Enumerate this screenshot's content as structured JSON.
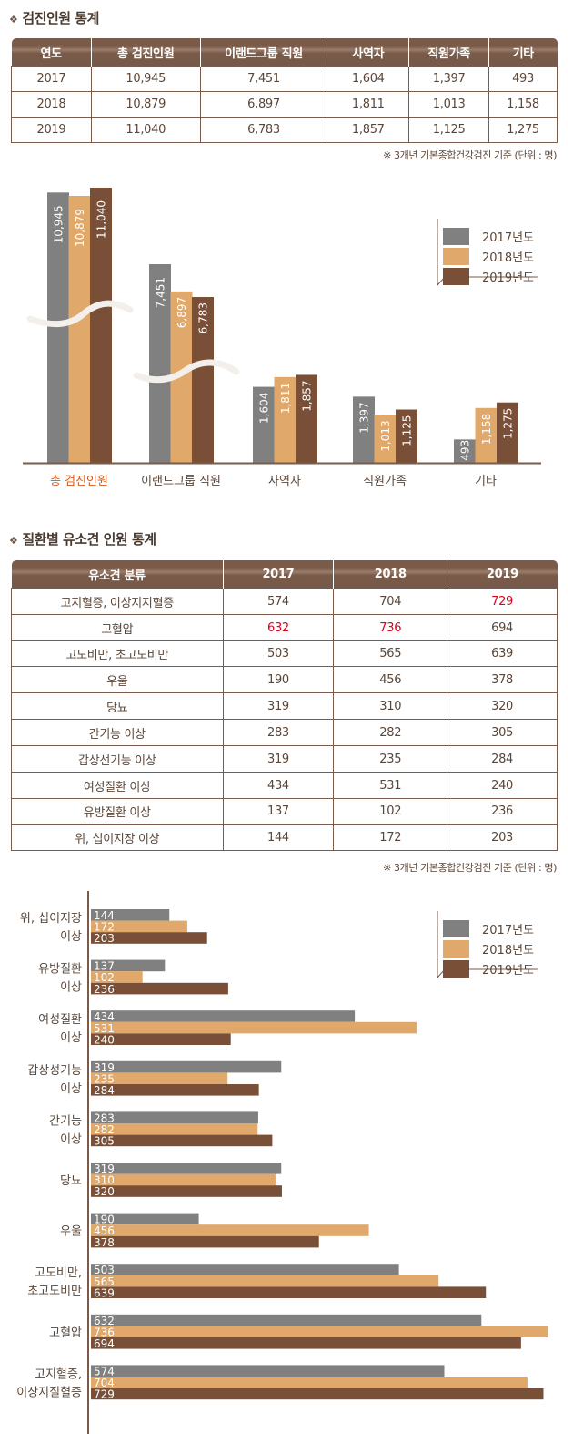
{
  "section1": {
    "title": "검진인원 통계",
    "headers": [
      "연도",
      "총 검진인원",
      "이랜드그룹 직원",
      "사역자",
      "직원가족",
      "기타"
    ],
    "rows": [
      [
        "2017",
        "10,945",
        "7,451",
        "1,604",
        "1,397",
        "493"
      ],
      [
        "2018",
        "10,879",
        "6,897",
        "1,811",
        "1,013",
        "1,158"
      ],
      [
        "2019",
        "11,040",
        "6,783",
        "1,857",
        "1,125",
        "1,275"
      ]
    ],
    "note": "※ 3개년 기본종합건강검진 기준  (단위 : 명)"
  },
  "section2": {
    "title": "질환별 유소견 인원 통계",
    "headers": [
      "유소견 분류",
      "2017",
      "2018",
      "2019"
    ],
    "rows": [
      [
        "고지혈증, 이상지지혈증",
        "574",
        "704",
        "729"
      ],
      [
        "고혈압",
        "632",
        "736",
        "694"
      ],
      [
        "고도비만, 초고도비만",
        "503",
        "565",
        "639"
      ],
      [
        "우울",
        "190",
        "456",
        "378"
      ],
      [
        "당뇨",
        "319",
        "310",
        "320"
      ],
      [
        "간기능 이상",
        "283",
        "282",
        "305"
      ],
      [
        "갑상선기능 이상",
        "319",
        "235",
        "284"
      ],
      [
        "여성질환 이상",
        "434",
        "531",
        "240"
      ],
      [
        "유방질환 이상",
        "137",
        "102",
        "236"
      ],
      [
        "위, 십이지장 이상",
        "144",
        "172",
        "203"
      ]
    ],
    "highlight": [
      [
        0,
        3
      ],
      [
        1,
        1
      ],
      [
        1,
        2
      ]
    ],
    "note": "※ 3개년 기본종합건강검진 기준  (단위 : 명)"
  },
  "colors": {
    "y2017": "#808080",
    "y2018": "#e0a96b",
    "y2019": "#7a4f38",
    "highlight": "#e0001b",
    "accent_label": "#d45a1e",
    "axis": "#7a5a48"
  },
  "chart_data": [
    {
      "type": "bar",
      "orientation": "vertical",
      "axis_break": true,
      "categories": [
        "총 검진인원",
        "이랜드그룹 직원",
        "사역자",
        "직원가족",
        "기타"
      ],
      "series": [
        {
          "name": "2017년도",
          "values": [
            10945,
            7451,
            1604,
            1397,
            493
          ],
          "labels": [
            "10,945",
            "7,451",
            "1,604",
            "1,397",
            "493"
          ]
        },
        {
          "name": "2018년도",
          "values": [
            10879,
            6897,
            1811,
            1013,
            1158
          ],
          "labels": [
            "10,879",
            "6,897",
            "1,811",
            "1,013",
            "1,158"
          ]
        },
        {
          "name": "2019년도",
          "values": [
            11040,
            6783,
            1857,
            1125,
            1275
          ],
          "labels": [
            "11,040",
            "6,783",
            "1,857",
            "1,125",
            "1,275"
          ]
        }
      ],
      "legend": "top-right",
      "highlighted_category": 0
    },
    {
      "type": "bar",
      "orientation": "horizontal",
      "categories": [
        [
          "위, 십이지장",
          "이상"
        ],
        [
          "유방질환",
          "이상"
        ],
        [
          "여성질환",
          "이상"
        ],
        [
          "갑상성기능",
          "이상"
        ],
        [
          "간기능",
          "이상"
        ],
        [
          "당뇨"
        ],
        [
          "우울"
        ],
        [
          "고도비만,",
          "초고도비만"
        ],
        [
          "고혈압"
        ],
        [
          "고지혈증,",
          "이상지질혈증"
        ]
      ],
      "series": [
        {
          "name": "2017년도",
          "values": [
            144,
            137,
            434,
            319,
            283,
            319,
            190,
            503,
            632,
            574
          ]
        },
        {
          "name": "2018년도",
          "values": [
            172,
            102,
            531,
            235,
            282,
            310,
            456,
            565,
            736,
            704
          ]
        },
        {
          "name": "2019년도",
          "values": [
            203,
            236,
            240,
            284,
            305,
            320,
            378,
            639,
            694,
            729
          ]
        }
      ],
      "legend": "top-right"
    }
  ]
}
